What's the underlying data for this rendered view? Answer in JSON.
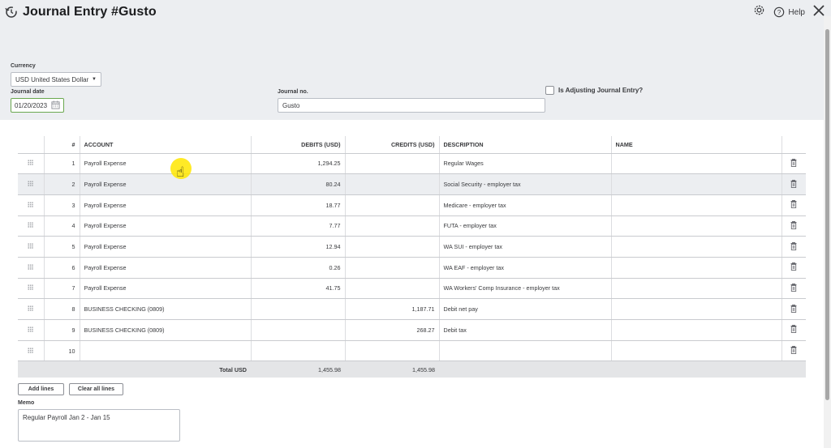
{
  "header": {
    "title": "Journal Entry #Gusto",
    "help_label": "Help"
  },
  "form": {
    "currency_label": "Currency",
    "currency_value": "USD United States Dollar",
    "journal_date_label": "Journal date",
    "journal_date_value": "01/20/2023",
    "journal_no_label": "Journal no.",
    "journal_no_value": "Gusto",
    "adjusting_label": "Is Adjusting Journal Entry?"
  },
  "table": {
    "headers": {
      "idx": "#",
      "account": "ACCOUNT",
      "debits": "DEBITS (USD)",
      "credits": "CREDITS (USD)",
      "description": "DESCRIPTION",
      "name": "NAME"
    },
    "rows": [
      {
        "idx": "1",
        "account": "Payroll Expense",
        "debit": "1,294.25",
        "credit": "",
        "description": "Regular Wages",
        "name": ""
      },
      {
        "idx": "2",
        "account": "Payroll Expense",
        "debit": "80.24",
        "credit": "",
        "description": "Social Security - employer tax",
        "name": ""
      },
      {
        "idx": "3",
        "account": "Payroll Expense",
        "debit": "18.77",
        "credit": "",
        "description": "Medicare - employer tax",
        "name": ""
      },
      {
        "idx": "4",
        "account": "Payroll Expense",
        "debit": "7.77",
        "credit": "",
        "description": "FUTA - employer tax",
        "name": ""
      },
      {
        "idx": "5",
        "account": "Payroll Expense",
        "debit": "12.94",
        "credit": "",
        "description": "WA SUI - employer tax",
        "name": ""
      },
      {
        "idx": "6",
        "account": "Payroll Expense",
        "debit": "0.26",
        "credit": "",
        "description": "WA EAF - employer tax",
        "name": ""
      },
      {
        "idx": "7",
        "account": "Payroll Expense",
        "debit": "41.75",
        "credit": "",
        "description": "WA Workers' Comp Insurance - employer tax",
        "name": ""
      },
      {
        "idx": "8",
        "account": "BUSINESS CHECKING (0809)",
        "debit": "",
        "credit": "1,187.71",
        "description": "Debit net pay",
        "name": ""
      },
      {
        "idx": "9",
        "account": "BUSINESS CHECKING (0809)",
        "debit": "",
        "credit": "268.27",
        "description": "Debit tax",
        "name": ""
      },
      {
        "idx": "10",
        "account": "",
        "debit": "",
        "credit": "",
        "description": "",
        "name": ""
      }
    ],
    "total_label": "Total USD",
    "total_debits": "1,455.98",
    "total_credits": "1,455.98"
  },
  "actions": {
    "add_lines": "Add lines",
    "clear_all_lines": "Clear all lines"
  },
  "memo": {
    "label": "Memo",
    "value": "Regular Payroll Jan 2 - Jan 15"
  }
}
